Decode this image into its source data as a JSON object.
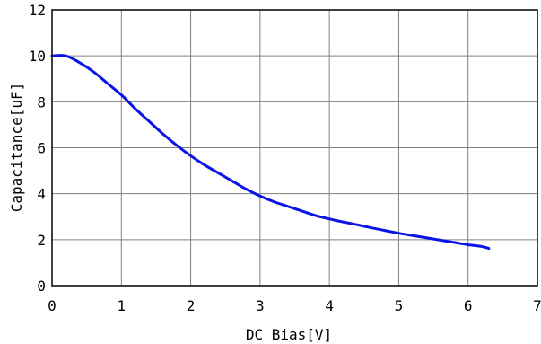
{
  "chart_data": {
    "type": "line",
    "title": "",
    "xlabel": "DC Bias[V]",
    "ylabel": "Capacitance[uF]",
    "xlim": [
      0,
      7
    ],
    "ylim": [
      0,
      12
    ],
    "x_ticks": [
      0,
      1,
      2,
      3,
      4,
      5,
      6,
      7
    ],
    "y_ticks": [
      0,
      2,
      4,
      6,
      8,
      10,
      12
    ],
    "grid": true,
    "legend": "none",
    "line_color": "#0a14e6",
    "series": [
      {
        "x": [
          0,
          0.2,
          0.4,
          0.6,
          0.8,
          1.0,
          1.2,
          1.4,
          1.6,
          1.8,
          2.0,
          2.2,
          2.4,
          2.6,
          2.8,
          3.0,
          3.2,
          3.4,
          3.6,
          3.8,
          4.0,
          4.2,
          4.4,
          4.6,
          4.8,
          5.0,
          5.2,
          5.4,
          5.6,
          5.8,
          6.0,
          6.2,
          6.3
        ],
        "y": [
          10.0,
          10.0,
          9.7,
          9.3,
          8.8,
          8.3,
          7.7,
          7.15,
          6.6,
          6.1,
          5.65,
          5.25,
          4.9,
          4.55,
          4.2,
          3.9,
          3.65,
          3.45,
          3.25,
          3.05,
          2.9,
          2.77,
          2.65,
          2.52,
          2.4,
          2.28,
          2.18,
          2.08,
          1.98,
          1.88,
          1.78,
          1.7,
          1.62
        ]
      }
    ]
  }
}
